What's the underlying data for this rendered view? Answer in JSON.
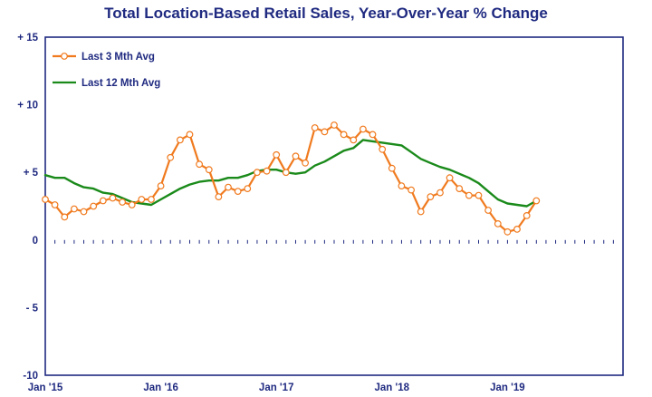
{
  "chart_data": {
    "type": "line",
    "title": "Total Location-Based Retail Sales, Year-Over-Year % Change",
    "xlabel": "",
    "ylabel": "",
    "ylim": [
      -10,
      15
    ],
    "yticks": [
      {
        "value": 15,
        "label": "+ 15"
      },
      {
        "value": 10,
        "label": "+ 10"
      },
      {
        "value": 5,
        "label": "+ 5"
      },
      {
        "value": 0,
        "label": "0"
      },
      {
        "value": -5,
        "label": "- 5"
      },
      {
        "value": -10,
        "label": "-10"
      }
    ],
    "xlim": [
      "2015-01",
      "2019-12"
    ],
    "xticks": [
      {
        "value": "2015-01",
        "label": "Jan '15"
      },
      {
        "value": "2016-01",
        "label": "Jan '16"
      },
      {
        "value": "2017-01",
        "label": "Jan '17"
      },
      {
        "value": "2018-01",
        "label": "Jan '18"
      },
      {
        "value": "2019-01",
        "label": "Jan '19"
      }
    ],
    "grid": true,
    "legend_position": "top-left",
    "colors": {
      "axis": "#1f2a80",
      "grid": "#1f2a80",
      "title": "#1f2a80",
      "background": "#ffffff"
    },
    "series": [
      {
        "name": "Last 3 Mth Avg",
        "color": "#f07a1e",
        "marker": "circle",
        "x": [
          "2015-01",
          "2015-02",
          "2015-03",
          "2015-04",
          "2015-05",
          "2015-06",
          "2015-07",
          "2015-08",
          "2015-09",
          "2015-10",
          "2015-11",
          "2015-12",
          "2016-01",
          "2016-02",
          "2016-03",
          "2016-04",
          "2016-05",
          "2016-06",
          "2016-07",
          "2016-08",
          "2016-09",
          "2016-10",
          "2016-11",
          "2016-12",
          "2017-01",
          "2017-02",
          "2017-03",
          "2017-04",
          "2017-05",
          "2017-06",
          "2017-07",
          "2017-08",
          "2017-09",
          "2017-10",
          "2017-11",
          "2017-12",
          "2018-01",
          "2018-02",
          "2018-03",
          "2018-04",
          "2018-05",
          "2018-06",
          "2018-07",
          "2018-08",
          "2018-09",
          "2018-10",
          "2018-11",
          "2018-12",
          "2019-01",
          "2019-02",
          "2019-03",
          "2019-04"
        ],
        "values": [
          3.0,
          2.6,
          1.7,
          2.3,
          2.1,
          2.5,
          2.9,
          3.1,
          2.8,
          2.6,
          3.0,
          3.0,
          4.0,
          6.1,
          7.4,
          7.8,
          5.6,
          5.2,
          3.2,
          3.9,
          3.6,
          3.8,
          5.0,
          5.1,
          6.3,
          5.0,
          6.2,
          5.7,
          8.3,
          8.0,
          8.5,
          7.8,
          7.4,
          8.2,
          7.8,
          6.7,
          5.3,
          4.0,
          3.7,
          2.1,
          3.2,
          3.5,
          4.6,
          3.8,
          3.3,
          3.3,
          2.2,
          1.2,
          0.6,
          0.8,
          1.8,
          2.9
        ]
      },
      {
        "name": "Last 12 Mth Avg",
        "color": "#1a8a1a",
        "marker": "none",
        "x": [
          "2015-01",
          "2015-02",
          "2015-03",
          "2015-04",
          "2015-05",
          "2015-06",
          "2015-07",
          "2015-08",
          "2015-09",
          "2015-10",
          "2015-11",
          "2015-12",
          "2016-01",
          "2016-02",
          "2016-03",
          "2016-04",
          "2016-05",
          "2016-06",
          "2016-07",
          "2016-08",
          "2016-09",
          "2016-10",
          "2016-11",
          "2016-12",
          "2017-01",
          "2017-02",
          "2017-03",
          "2017-04",
          "2017-05",
          "2017-06",
          "2017-07",
          "2017-08",
          "2017-09",
          "2017-10",
          "2017-11",
          "2017-12",
          "2018-01",
          "2018-02",
          "2018-03",
          "2018-04",
          "2018-05",
          "2018-06",
          "2018-07",
          "2018-08",
          "2018-09",
          "2018-10",
          "2018-11",
          "2018-12",
          "2019-01",
          "2019-02",
          "2019-03",
          "2019-04"
        ],
        "values": [
          4.8,
          4.6,
          4.6,
          4.2,
          3.9,
          3.8,
          3.5,
          3.4,
          3.1,
          2.8,
          2.7,
          2.6,
          3.0,
          3.4,
          3.8,
          4.1,
          4.3,
          4.4,
          4.4,
          4.6,
          4.6,
          4.8,
          5.1,
          5.2,
          5.2,
          5.0,
          4.9,
          5.0,
          5.5,
          5.8,
          6.2,
          6.6,
          6.8,
          7.4,
          7.3,
          7.2,
          7.1,
          7.0,
          6.5,
          6.0,
          5.7,
          5.4,
          5.2,
          4.9,
          4.6,
          4.2,
          3.6,
          3.0,
          2.7,
          2.6,
          2.5,
          2.9
        ]
      }
    ]
  }
}
